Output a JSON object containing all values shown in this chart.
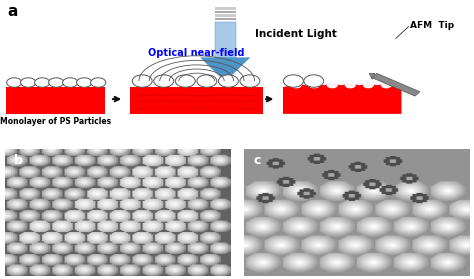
{
  "bg_color": "#ffffff",
  "panel_a_label": "a",
  "panel_b_label": "b",
  "panel_c_label": "c",
  "incident_light_text": "Incident Light",
  "optical_nearfield_text": "Optical near-field",
  "afm_tip_text": "AFM  Tip",
  "monolayer_text": "Monolayer of PS Particles",
  "text_color": "#000000",
  "blue_text_color": "#0000ff",
  "particle_color": "#ffffff",
  "particle_edge_color": "#555555",
  "red_color": "#ff0000",
  "afm_tip_color": "#888888",
  "arrow_shaft_color": "#a8c8e8",
  "arrow_head_color": "#4d94c8",
  "arrow_border_color": "#4d94c8",
  "black_arrow_color": "#111111",
  "dashed_line_color": "#cc0000",
  "sem_bg_b": "#7a7a7a",
  "sem_bg_c": "#999999"
}
